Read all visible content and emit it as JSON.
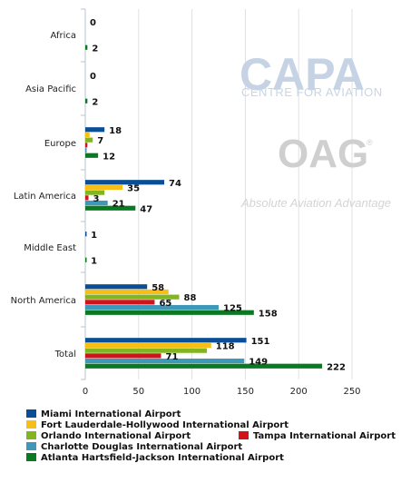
{
  "chart_data": {
    "type": "bar",
    "orientation": "horizontal",
    "categories": [
      "Africa",
      "Asia Pacific",
      "Europe",
      "Latin America",
      "Middle East",
      "North America",
      "Total"
    ],
    "series": [
      {
        "name": "Miami International Airport",
        "color": "#0a4f96",
        "values": [
          0,
          0,
          18,
          74,
          1,
          58,
          151
        ]
      },
      {
        "name": "Fort Lauderdale-Hollywood International Airport",
        "color": "#f7be17",
        "values": [
          0,
          0,
          4,
          35,
          0,
          78,
          118
        ]
      },
      {
        "name": "Orlando International Airport",
        "color": "#82b51f",
        "values": [
          0,
          0,
          7,
          18,
          0,
          88,
          114
        ]
      },
      {
        "name": "Tampa International Airport",
        "color": "#d0141c",
        "values": [
          0,
          0,
          2,
          3,
          0,
          65,
          71
        ]
      },
      {
        "name": "Charlotte Douglas International Airport",
        "color": "#4098b9",
        "values": [
          0,
          0,
          1,
          21,
          0,
          125,
          149
        ]
      },
      {
        "name": "Atlanta Hartsfield-Jackson International Airport",
        "color": "#0a7a22",
        "values": [
          2,
          2,
          12,
          47,
          1,
          158,
          222
        ]
      }
    ],
    "data_labels": [
      {
        "category": 0,
        "series": 0,
        "text": "0"
      },
      {
        "category": 0,
        "series": 5,
        "text": "2"
      },
      {
        "category": 1,
        "series": 0,
        "text": "0"
      },
      {
        "category": 1,
        "series": 5,
        "text": "2"
      },
      {
        "category": 2,
        "series": 0,
        "text": "18"
      },
      {
        "category": 2,
        "series": 2,
        "text": "7"
      },
      {
        "category": 2,
        "series": 5,
        "text": "12"
      },
      {
        "category": 3,
        "series": 0,
        "text": "74"
      },
      {
        "category": 3,
        "series": 1,
        "text": "35"
      },
      {
        "category": 3,
        "series": 3,
        "text": "3"
      },
      {
        "category": 3,
        "series": 4,
        "text": "21"
      },
      {
        "category": 3,
        "series": 5,
        "text": "47"
      },
      {
        "category": 4,
        "series": 0,
        "text": "1"
      },
      {
        "category": 4,
        "series": 5,
        "text": "1"
      },
      {
        "category": 5,
        "series": 0,
        "text": "58"
      },
      {
        "category": 5,
        "series": 2,
        "text": "88"
      },
      {
        "category": 5,
        "series": 3,
        "text": "65"
      },
      {
        "category": 5,
        "series": 4,
        "text": "125"
      },
      {
        "category": 5,
        "series": 5,
        "text": "158"
      },
      {
        "category": 6,
        "series": 0,
        "text": "151"
      },
      {
        "category": 6,
        "series": 1,
        "text": "118"
      },
      {
        "category": 6,
        "series": 3,
        "text": "71"
      },
      {
        "category": 6,
        "series": 4,
        "text": "149"
      },
      {
        "category": 6,
        "series": 5,
        "text": "222"
      }
    ],
    "xlim": [
      0,
      250
    ],
    "xticks": [
      "0",
      "50",
      "100",
      "150",
      "200",
      "250"
    ],
    "grid": true,
    "legend_position": "bottom"
  },
  "watermarks": {
    "capa_logo": "CAPA",
    "capa_subtitle": "CENTRE FOR AVIATION",
    "oag_logo": "OAG",
    "oag_registered": "®",
    "oag_tagline": "Absolute Aviation Advantage"
  }
}
